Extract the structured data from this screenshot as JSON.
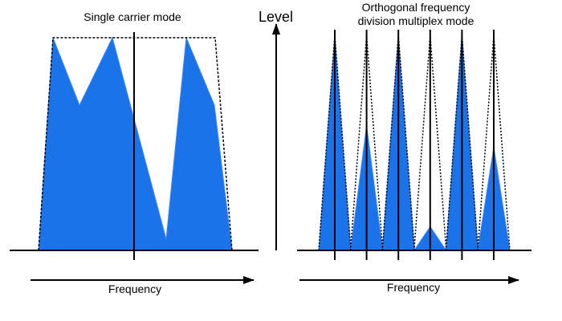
{
  "colors": {
    "fill": "#1a73e8",
    "stroke": "#000000",
    "background": "#ffffff"
  },
  "left_panel": {
    "title": "Single carrier mode",
    "x_axis_label": "Frequency"
  },
  "right_panel": {
    "title_line1": "Orthogonal frequency",
    "title_line2": "division multiplex mode",
    "x_axis_label": "Frequency"
  },
  "level_axis_label": "Level",
  "subcarrier_relative_heights": [
    1.0,
    0.58,
    1.0,
    0.11,
    1.0,
    0.48
  ]
}
